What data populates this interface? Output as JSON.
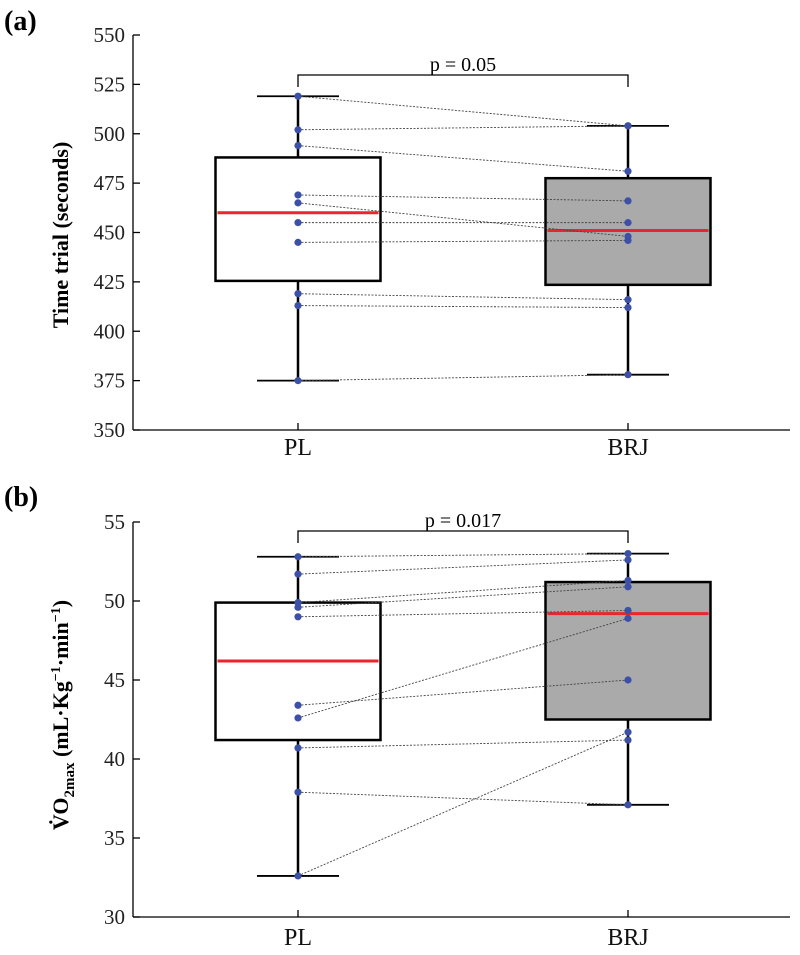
{
  "chart_data": [
    {
      "type": "box",
      "panel_label": "(a)",
      "categories": [
        "PL",
        "BRJ"
      ],
      "ylabel": "Time trial (seconds)",
      "ylim": [
        350,
        550
      ],
      "yticks": [
        350,
        375,
        400,
        425,
        450,
        475,
        500,
        525,
        550
      ],
      "ytick_labels": [
        "350",
        "375",
        "400",
        "425",
        "450",
        "475",
        "500",
        "525",
        "550"
      ],
      "boxes": [
        {
          "name": "PL",
          "whisker_low": 375,
          "q1": 425.5,
          "median": 460,
          "q3": 488,
          "whisker_high": 519,
          "fill": "#ffffff"
        },
        {
          "name": "BRJ",
          "whisker_low": 378,
          "q1": 423.5,
          "median": 451,
          "q3": 477.5,
          "whisker_high": 504,
          "fill": "#aaaaaa"
        }
      ],
      "paired_points": [
        [
          519,
          504
        ],
        [
          502,
          504
        ],
        [
          494,
          481
        ],
        [
          469,
          466
        ],
        [
          465,
          448
        ],
        [
          455,
          455
        ],
        [
          445,
          446
        ],
        [
          419,
          416
        ],
        [
          413,
          412
        ],
        [
          375,
          378
        ]
      ],
      "annotation": "p = 0.05",
      "colors": {
        "median": "#e8262b",
        "points": "#3d50a8",
        "pair_lines": "#444444"
      }
    },
    {
      "type": "box",
      "panel_label": "(b)",
      "categories": [
        "PL",
        "BRJ"
      ],
      "ylabel": {
        "main": "V̇O",
        "sub": "2max",
        "units": "(mL·Kg",
        "exp1": "−1",
        "mid": "·min",
        "exp2": "−1",
        "close": ")"
      },
      "ylim": [
        30,
        55
      ],
      "yticks": [
        30,
        35,
        40,
        45,
        50,
        55
      ],
      "ytick_labels": [
        "30",
        "35",
        "40",
        "45",
        "50",
        "55"
      ],
      "boxes": [
        {
          "name": "PL",
          "whisker_low": 32.6,
          "q1": 41.2,
          "median": 46.2,
          "q3": 49.9,
          "whisker_high": 52.8,
          "fill": "#ffffff"
        },
        {
          "name": "BRJ",
          "whisker_low": 37.1,
          "q1": 42.5,
          "median": 49.2,
          "q3": 51.2,
          "whisker_high": 53.0,
          "fill": "#aaaaaa"
        }
      ],
      "paired_points": [
        [
          52.8,
          53.0
        ],
        [
          51.7,
          52.6
        ],
        [
          49.9,
          51.3
        ],
        [
          49.6,
          50.9
        ],
        [
          49.0,
          49.4
        ],
        [
          43.4,
          45.0
        ],
        [
          42.6,
          48.9
        ],
        [
          40.7,
          41.2
        ],
        [
          37.9,
          37.1
        ],
        [
          32.6,
          41.7
        ]
      ],
      "annotation": "p = 0.017",
      "colors": {
        "median": "#e8262b",
        "points": "#3d50a8",
        "pair_lines": "#444444"
      }
    }
  ]
}
